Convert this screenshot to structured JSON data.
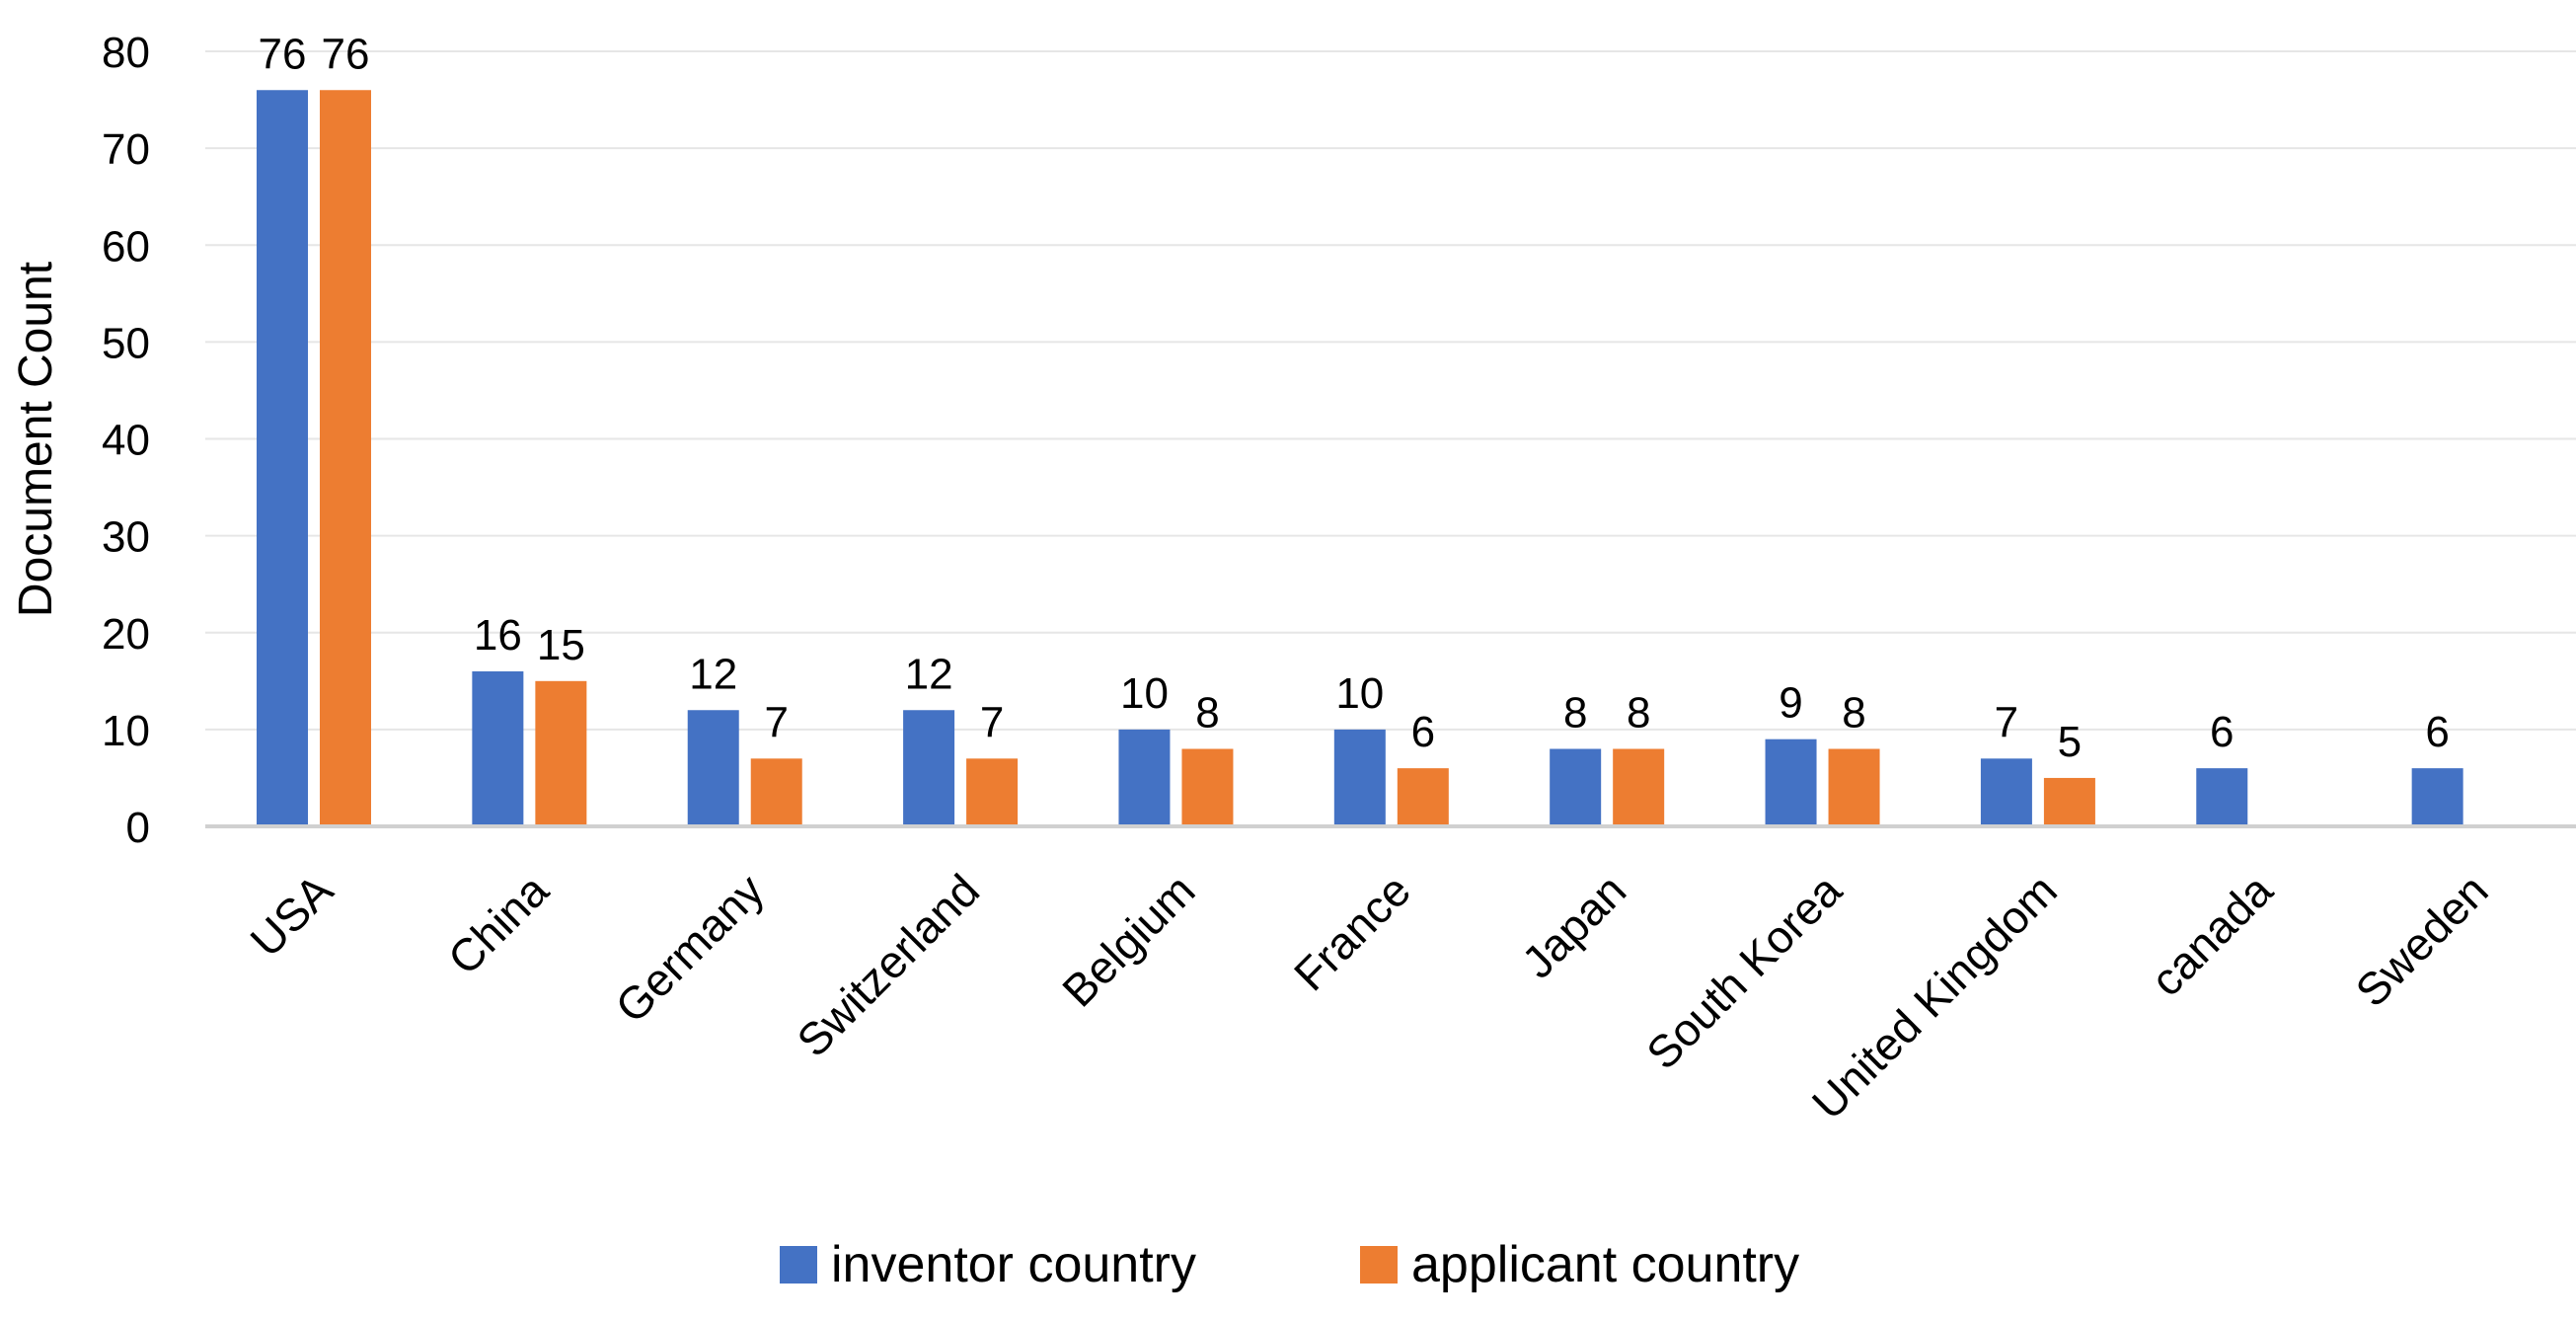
{
  "chart_data": {
    "type": "bar",
    "categories": [
      "USA",
      "China",
      "Germany",
      "Switzerland",
      "Belgium",
      "France",
      "Japan",
      "South Korea",
      "United Kingdom",
      "canada",
      "Sweden"
    ],
    "series": [
      {
        "name": "inventor country",
        "color": "#4472C4",
        "values": [
          76,
          16,
          12,
          12,
          10,
          10,
          8,
          9,
          7,
          6,
          6
        ]
      },
      {
        "name": "applicant country",
        "color": "#ED7D31",
        "values": [
          76,
          15,
          7,
          7,
          8,
          6,
          8,
          8,
          5,
          null,
          null
        ]
      }
    ],
    "ylabel": "Document Count",
    "xlabel": "",
    "ylim": [
      0,
      80
    ],
    "yticks": [
      0,
      10,
      20,
      30,
      40,
      50,
      60,
      70,
      80
    ],
    "grid": true,
    "legend_position": "bottom",
    "data_labels": true
  }
}
